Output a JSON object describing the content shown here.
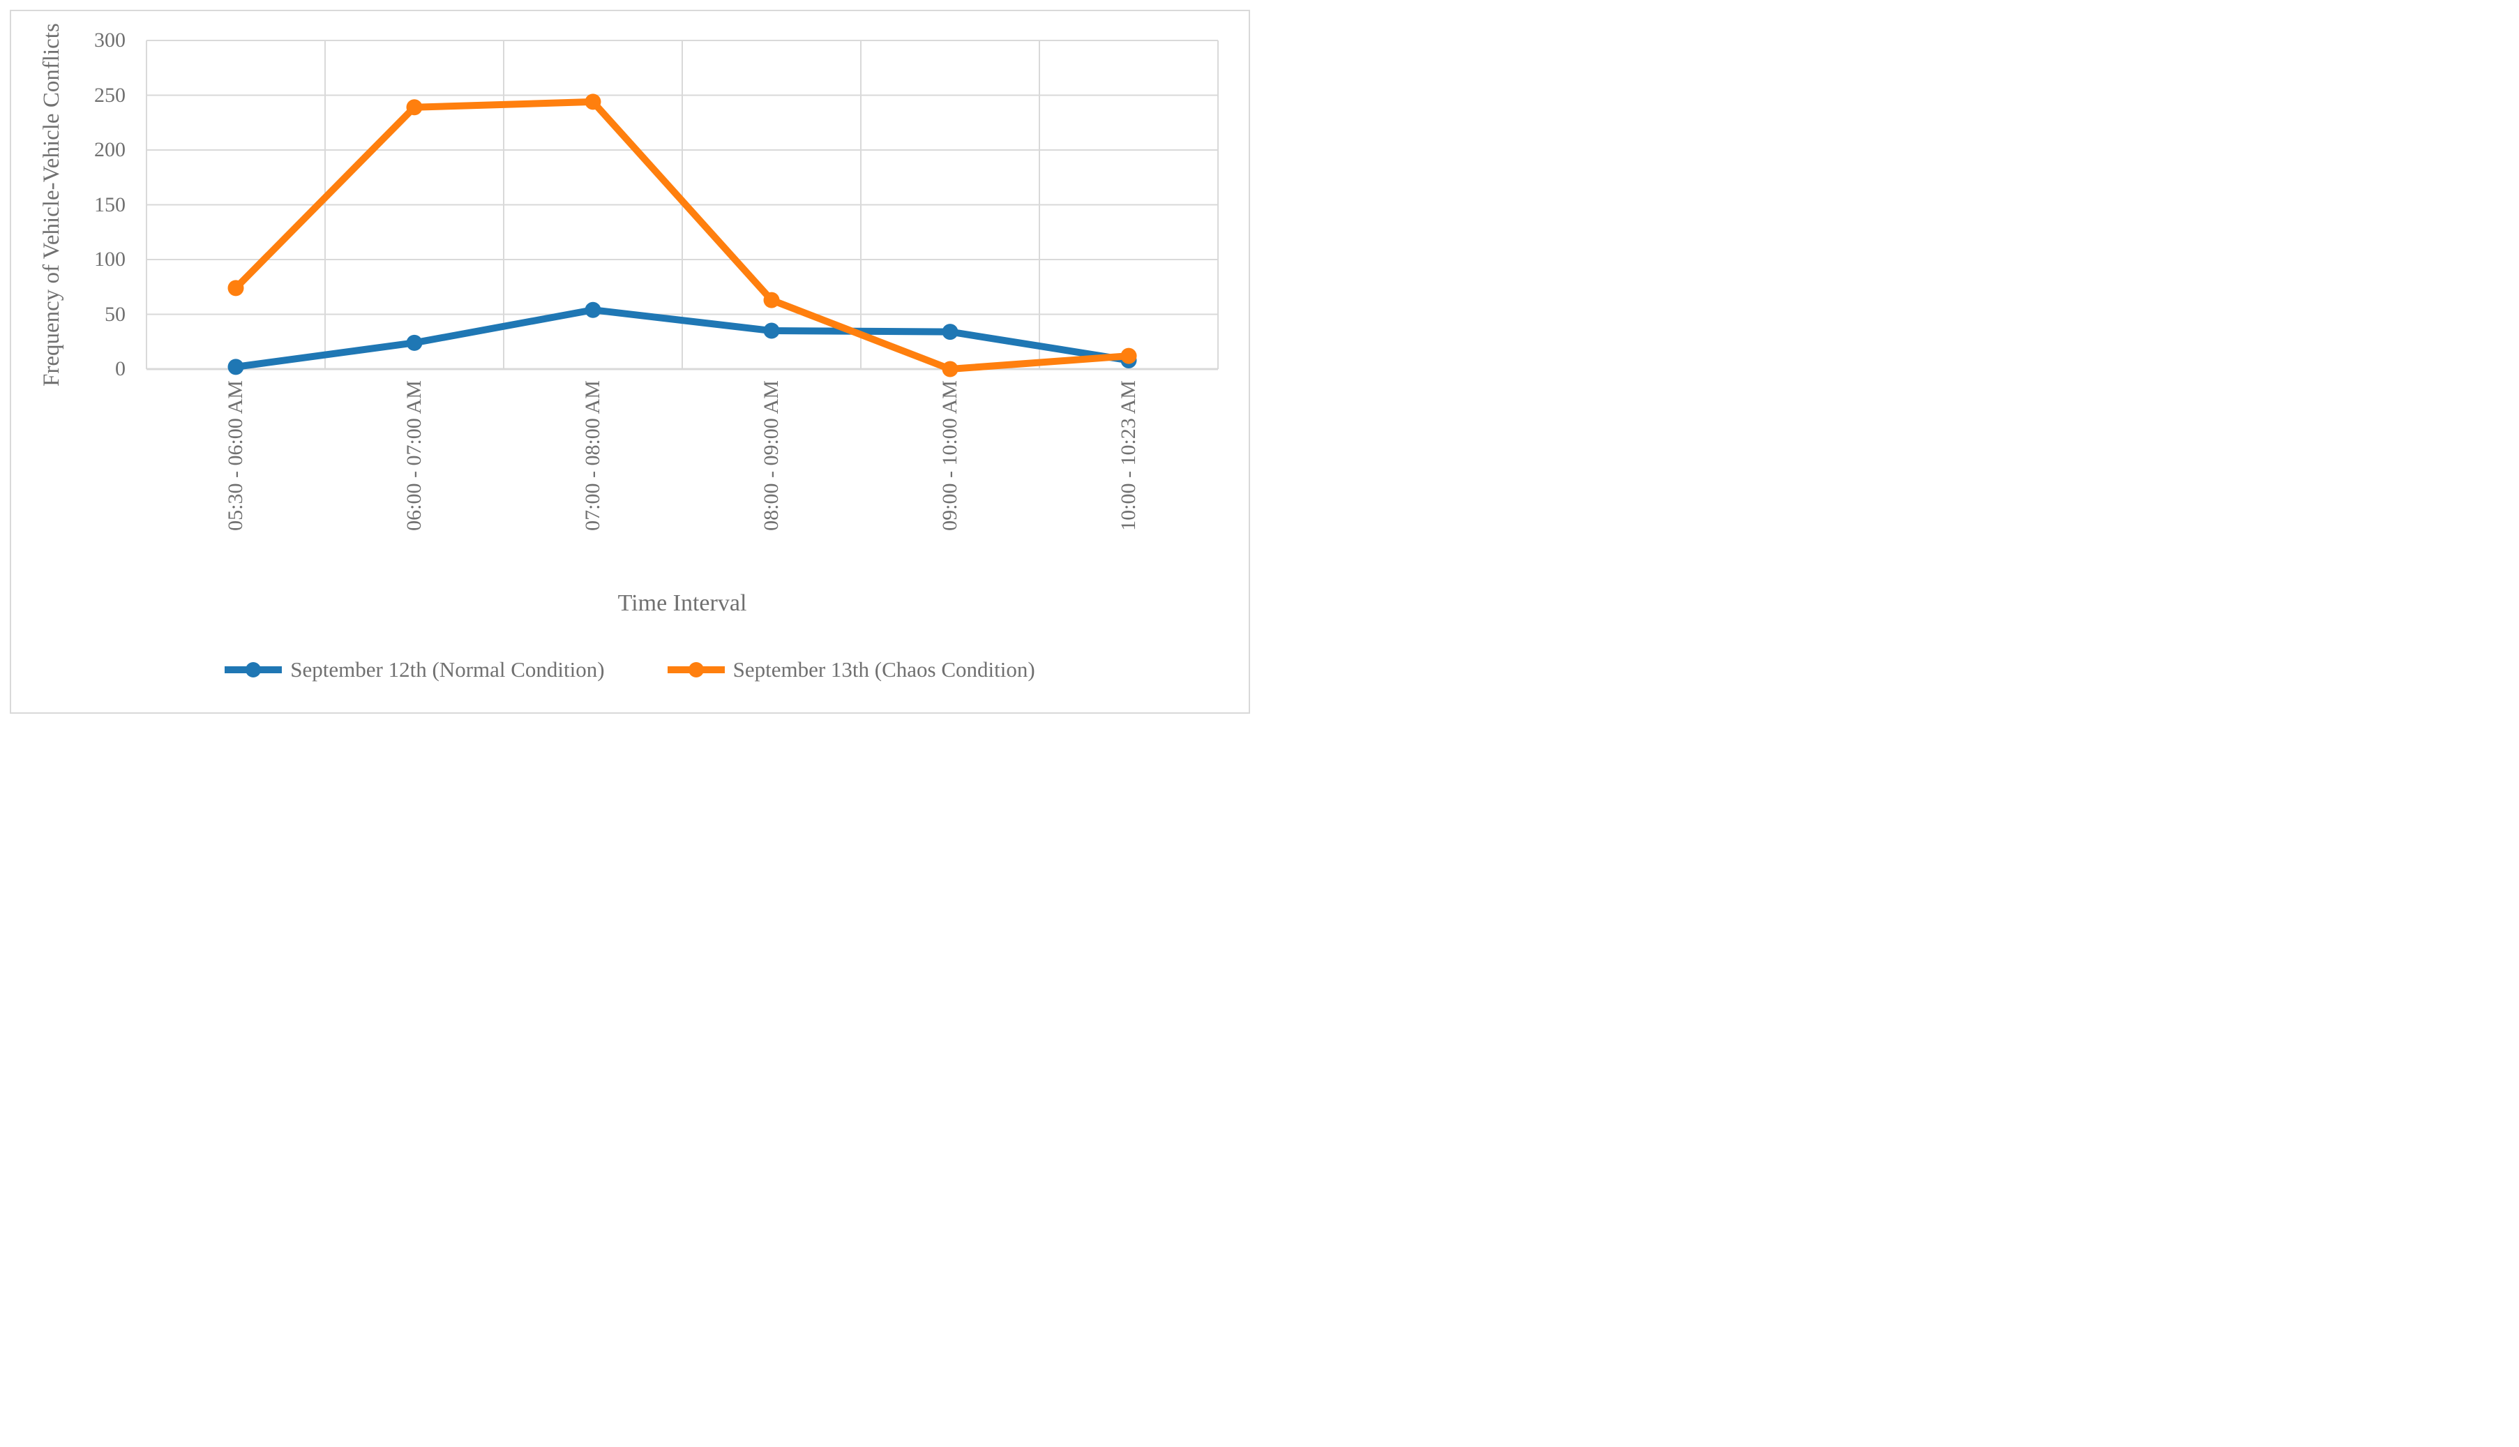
{
  "chart_data": {
    "type": "line",
    "title": "",
    "xlabel": "Time Interval",
    "ylabel": "Frequency of Vehicle-Vehicle Conflicts",
    "categories": [
      "05:30 - 06:00 AM",
      "06:00 - 07:00 AM",
      "07:00 - 08:00 AM",
      "08:00 - 09:00 AM",
      "09:00 - 10:00 AM",
      "10:00 - 10:23 AM"
    ],
    "series": [
      {
        "name": "September 12th (Normal Condition)",
        "color": "#1F77B4",
        "values": [
          2,
          24,
          54,
          35,
          34,
          8
        ]
      },
      {
        "name": "September 13th (Chaos Condition)",
        "color": "#FF7F0E",
        "values": [
          74,
          239,
          244,
          63,
          0,
          12
        ]
      }
    ],
    "ylim": [
      0,
      300
    ],
    "y_ticks": [
      300,
      250,
      200,
      150,
      100,
      50,
      0
    ],
    "grid": true,
    "legend_position": "bottom",
    "gridline_color": "#D9D9D9",
    "text_color": "#707070",
    "background_color": "#FFFFFF"
  }
}
